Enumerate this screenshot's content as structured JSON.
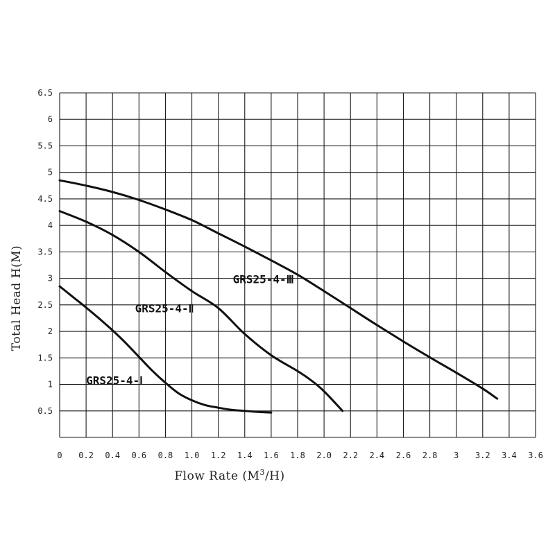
{
  "chart_data": {
    "type": "line",
    "title": "",
    "xlabel": "Flow Rate (M",
    "xlabel_sup": "3",
    "xlabel_tail": "/H)",
    "ylabel": "Total Head H(M)",
    "xlim": [
      0,
      3.6
    ],
    "ylim": [
      0,
      6.5
    ],
    "grid": true,
    "x_ticks": [
      "0",
      "0.2",
      "0.4",
      "0.6",
      "0.8",
      "1.0",
      "1.2",
      "1.4",
      "1.6",
      "1.8",
      "2.0",
      "2.2",
      "2.4",
      "2.6",
      "2.8",
      "3",
      "3.2",
      "3.4",
      "3.6"
    ],
    "y_ticks": [
      "0.5",
      "1",
      "1.5",
      "2",
      "2.5",
      "3",
      "3.5",
      "4",
      "4.5",
      "5",
      "5.5",
      "6",
      "6.5"
    ],
    "series": [
      {
        "name": "GRS25-4-Ⅰ",
        "x": [
          0,
          0.1,
          0.2,
          0.3,
          0.4,
          0.5,
          0.6,
          0.7,
          0.8,
          0.9,
          1.0,
          1.1,
          1.2,
          1.3,
          1.4,
          1.5,
          1.6
        ],
        "y": [
          2.85,
          2.65,
          2.45,
          2.24,
          2.02,
          1.78,
          1.52,
          1.26,
          1.03,
          0.83,
          0.7,
          0.61,
          0.56,
          0.52,
          0.5,
          0.48,
          0.47
        ]
      },
      {
        "name": "GRS25-4-Ⅱ",
        "x": [
          0,
          0.2,
          0.4,
          0.6,
          0.8,
          1.0,
          1.2,
          1.4,
          1.6,
          1.8,
          1.9,
          2.0,
          2.14
        ],
        "y": [
          4.27,
          4.07,
          3.82,
          3.5,
          3.12,
          2.76,
          2.44,
          1.95,
          1.55,
          1.25,
          1.08,
          0.87,
          0.5
        ]
      },
      {
        "name": "GRS25-4-Ⅲ",
        "x": [
          0,
          0.2,
          0.4,
          0.6,
          0.8,
          1.0,
          1.2,
          1.4,
          1.6,
          1.8,
          2.0,
          2.2,
          2.4,
          2.6,
          2.8,
          3.0,
          3.2,
          3.31
        ],
        "y": [
          4.85,
          4.75,
          4.63,
          4.48,
          4.3,
          4.1,
          3.85,
          3.6,
          3.34,
          3.07,
          2.76,
          2.44,
          2.12,
          1.81,
          1.51,
          1.22,
          0.92,
          0.73
        ]
      }
    ],
    "annotations": [
      {
        "text": "GRS25-4-Ⅰ",
        "x": 0.2,
        "y": 1.0
      },
      {
        "text": "GRS25-4-Ⅱ",
        "x": 0.57,
        "y": 2.36
      },
      {
        "text": "GRS25-4-Ⅲ",
        "x": 1.31,
        "y": 2.91
      }
    ]
  }
}
